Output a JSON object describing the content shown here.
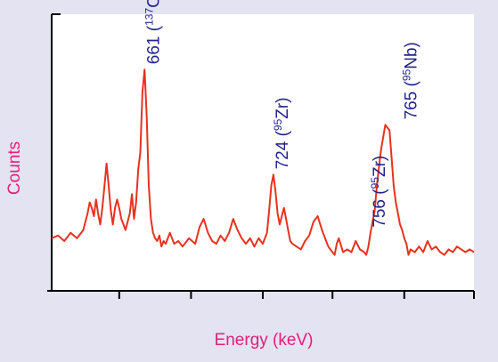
{
  "colors": {
    "background": "#e3e3f2",
    "plot_background": "#ffffff",
    "axis": "#000000",
    "spectrum": "#e8321e",
    "axis_title": "#e0207a",
    "peak_label": "#23238e"
  },
  "chart_data": {
    "type": "line",
    "title": "",
    "xlabel": "Energy (keV)",
    "ylabel": "Counts",
    "xlim": [
      600,
      800
    ],
    "ylim": [
      0,
      100
    ],
    "grid": false,
    "legend": "none",
    "x_tick_labels": false,
    "y_tick_labels": false,
    "x_ticks": [
      632,
      666,
      700,
      733,
      767,
      800
    ],
    "series": [
      {
        "x": [
          600,
          603,
          606,
          609,
          612,
          615,
          617,
          618,
          619,
          620,
          621,
          622,
          623,
          624,
          625,
          626,
          627,
          628,
          629,
          630,
          631,
          632,
          633,
          634,
          635,
          636,
          637,
          638,
          639,
          640,
          641,
          642,
          643,
          644,
          645,
          646,
          647,
          648,
          649,
          650,
          651,
          652,
          653,
          654,
          655,
          656,
          658,
          660,
          662,
          665,
          668,
          670,
          672,
          674,
          676,
          678,
          680,
          682,
          684,
          686,
          688,
          690,
          692,
          694,
          696,
          698,
          700,
          702,
          703,
          704,
          705,
          706,
          707,
          708,
          709,
          710,
          711,
          712,
          713,
          714,
          716,
          718,
          720,
          722,
          724,
          726,
          728,
          730,
          731,
          732,
          733,
          734,
          735,
          736,
          738,
          740,
          742,
          744,
          746,
          748,
          749,
          750,
          751,
          752,
          753,
          754,
          756,
          758,
          760,
          761,
          762,
          763,
          764,
          765,
          766,
          767,
          768,
          769,
          770,
          772,
          774,
          776,
          778,
          780,
          782,
          784,
          786,
          788,
          790,
          792,
          794,
          796,
          798,
          800
        ],
        "values": [
          19,
          20,
          18,
          21,
          19,
          22,
          28,
          32,
          30,
          27,
          33,
          28,
          24,
          30,
          38,
          46,
          38,
          29,
          24,
          30,
          33,
          30,
          26,
          24,
          22,
          25,
          28,
          35,
          26,
          32,
          44,
          50,
          72,
          80,
          63,
          38,
          26,
          21,
          19,
          18,
          20,
          16,
          18,
          17,
          19,
          21,
          17,
          18,
          16,
          19,
          17,
          23,
          26,
          21,
          18,
          17,
          20,
          18,
          21,
          26,
          22,
          19,
          17,
          19,
          16,
          19,
          17,
          21,
          29,
          38,
          42,
          36,
          28,
          24,
          27,
          30,
          26,
          22,
          18,
          17,
          16,
          15,
          18,
          20,
          25,
          27,
          22,
          18,
          16,
          15,
          14,
          13,
          17,
          19,
          14,
          15,
          14,
          18,
          15,
          14,
          13,
          16,
          21,
          25,
          29,
          38,
          51,
          60,
          58,
          48,
          38,
          32,
          28,
          24,
          22,
          19,
          17,
          13,
          15,
          14,
          16,
          14,
          18,
          15,
          16,
          14,
          13,
          15,
          14,
          16,
          15,
          14,
          15,
          14
        ]
      }
    ],
    "annotations": [
      {
        "x": 644,
        "y": 80,
        "label": "661 (",
        "sup": "137",
        "element": "Cs)"
      },
      {
        "x": 705,
        "y": 42,
        "label": "724 (",
        "sup": "95",
        "element": "Zr)"
      },
      {
        "x": 751,
        "y": 21,
        "label": "756 (",
        "sup": "95",
        "element": "Zr)"
      },
      {
        "x": 766,
        "y": 60,
        "label": "765 (",
        "sup": "95",
        "element": "Nb)"
      }
    ]
  }
}
